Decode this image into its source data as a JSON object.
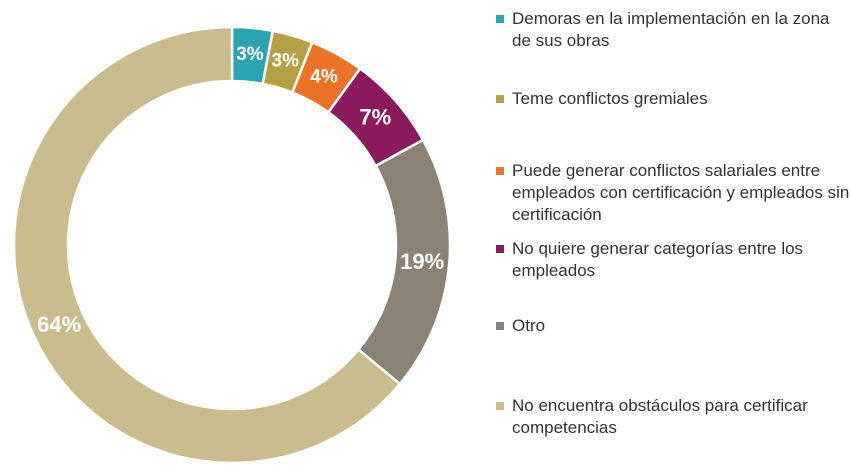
{
  "chart_data": {
    "type": "donut",
    "categories": [
      "Demoras en la implementación en la zona de sus obras",
      "Teme conflictos gremiales",
      "Puede generar conflictos salariales entre empleados con certificación y empleados sin certificación",
      "No quiere generar categorías entre los empleados",
      "Otro",
      "No encuentra obstáculos para certificar competencias"
    ],
    "values": [
      3,
      3,
      4,
      7,
      19,
      64
    ],
    "value_labels": [
      "3%",
      "3%",
      "4%",
      "7%",
      "19%",
      "64%"
    ],
    "colors": [
      "#2ba3b1",
      "#b5a043",
      "#ec7226",
      "#8b1a5c",
      "#8c8273",
      "#cbbc8e"
    ]
  }
}
